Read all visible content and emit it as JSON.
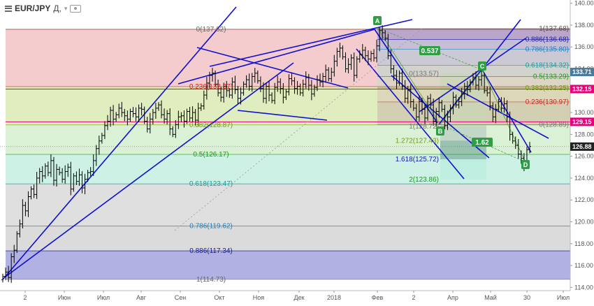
{
  "header": {
    "symbol": "EUR/JPY",
    "timeframe": "Д,"
  },
  "chart_data": {
    "type": "candlestick",
    "x_ticks": [
      "2",
      "Июн",
      "Июл",
      "Авг",
      "Сен",
      "Окт",
      "Ноя",
      "Дек",
      "2018",
      "Фев",
      "2",
      "Апр",
      "Май",
      "30",
      "Июл"
    ],
    "ylim": [
      113.7,
      140.3
    ],
    "y_ticks": [
      "114.00",
      "116.00",
      "118.00",
      "120.00",
      "122.00",
      "124.00",
      "126.00",
      "128.00",
      "130.00",
      "132.00",
      "134.00",
      "136.00",
      "138.00",
      "140.00"
    ],
    "price_labels": [
      {
        "value": "133.71",
        "color": "#4a7a9b"
      },
      {
        "value": "132.15",
        "color": "#e6007e"
      },
      {
        "value": "129.15",
        "color": "#e6007e"
      },
      {
        "value": "126.88",
        "color": "#222222"
      }
    ],
    "fib_retracement": {
      "label_color": "#5a5a5a",
      "levels": [
        {
          "label": "0(137.62)",
          "value": 137.62,
          "color": "#8a3030"
        },
        {
          "label": "0.236(132.37)",
          "value": 132.37,
          "color": "#cc2222"
        },
        {
          "label": "0.382(128.87)",
          "value": 128.87,
          "color": "#7a9a10"
        },
        {
          "label": "0.5(126.17)",
          "value": 126.17,
          "color": "#10a010"
        },
        {
          "label": "0.618(123.47)",
          "value": 123.47,
          "color": "#10a0a0"
        },
        {
          "label": "0.786(119.62)",
          "value": 119.62,
          "color": "#2080c0"
        },
        {
          "label": "0.886(117.34)",
          "value": 117.34,
          "color": "#1818a0"
        },
        {
          "label": "1(114.73)",
          "value": 114.73,
          "color": "#777777"
        }
      ]
    },
    "fib_retracement_2": {
      "levels": [
        {
          "label": "1(137.68)",
          "value": 137.68,
          "color": "#555555"
        },
        {
          "label": "0.886(136.68)",
          "value": 136.68,
          "color": "#1818a0"
        },
        {
          "label": "0.786(135.80)",
          "value": 135.8,
          "color": "#2080c0"
        },
        {
          "label": "0.618(134.32)",
          "value": 134.32,
          "color": "#10a0a0"
        },
        {
          "label": "0.5(133.29)",
          "value": 133.29,
          "color": "#10a010"
        },
        {
          "label": "0.382(132.25)",
          "value": 132.25,
          "color": "#7a9a10"
        },
        {
          "label": "0.236(130.97)",
          "value": 130.97,
          "color": "#cc2222"
        },
        {
          "label": "0(128.89)",
          "value": 128.89,
          "color": "#777777"
        }
      ]
    },
    "fib_extension": {
      "levels": [
        {
          "label": "0(133.57)",
          "value": 133.57,
          "color": "#777777"
        },
        {
          "label": "1(128.72)",
          "value": 128.72,
          "color": "#777777"
        },
        {
          "label": "1.272(127.43)",
          "value": 127.43,
          "color": "#7a9a10"
        },
        {
          "label": "1.618(125.72)",
          "value": 125.72,
          "color": "#1818a0"
        },
        {
          "label": "2(123.86)",
          "value": 123.86,
          "color": "#10a010"
        }
      ]
    },
    "pattern_points": [
      {
        "label": "A",
        "value": 137.7
      },
      {
        "label": "B",
        "value": 128.7
      },
      {
        "label": "C",
        "value": 133.5
      },
      {
        "label": "D",
        "value": 125.7
      }
    ],
    "ratio_labels": [
      "0.537",
      "1.62"
    ],
    "candle_color": "#000000",
    "trendline_color": "#1010d0",
    "series_close": [
      115.0,
      115.4,
      114.9,
      116.8,
      117.4,
      118.9,
      119.8,
      121.5,
      121.0,
      122.3,
      123.0,
      122.5,
      124.0,
      124.6,
      124.2,
      125.1,
      124.5,
      125.6,
      123.8,
      124.8,
      124.5,
      123.9,
      124.6,
      125.0,
      123.0,
      124.2,
      123.7,
      124.3,
      123.1,
      123.9,
      124.5,
      124.6,
      125.6,
      126.7,
      127.4,
      127.9,
      128.8,
      129.2,
      130.2,
      129.4,
      129.8,
      130.4,
      130.0,
      129.7,
      129.4,
      130.1,
      129.9,
      129.6,
      130.4,
      130.3,
      129.2,
      128.5,
      129.4,
      130.0,
      130.4,
      130.7,
      129.8,
      129.4,
      129.9,
      128.5,
      128.0,
      128.9,
      129.6,
      129.7,
      129.2,
      130.1,
      129.5,
      130.0,
      129.3,
      130.4,
      130.6,
      131.6,
      132.7,
      133.4,
      133.6,
      132.6,
      131.8,
      131.4,
      132.4,
      132.0,
      131.6,
      132.8,
      132.1,
      131.3,
      131.8,
      132.6,
      133.0,
      132.4,
      133.3,
      133.6,
      132.9,
      132.2,
      131.3,
      132.4,
      131.6,
      131.1,
      132.3,
      132.8,
      132.2,
      131.4,
      131.9,
      133.1,
      132.9,
      132.2,
      132.4,
      131.8,
      132.6,
      133.2,
      132.5,
      131.7,
      132.3,
      133.0,
      132.8,
      133.3,
      133.9,
      133.1,
      133.7,
      134.7,
      135.6,
      135.9,
      135.1,
      134.0,
      134.4,
      135.0,
      133.4,
      134.9,
      135.3,
      135.7,
      135.2,
      134.9,
      135.4,
      135.0,
      136.1,
      137.5,
      137.3,
      136.8,
      135.2,
      134.0,
      133.4,
      132.7,
      133.6,
      132.4,
      131.3,
      132.1,
      131.0,
      130.4,
      129.6,
      131.0,
      130.3,
      129.5,
      131.3,
      130.7,
      129.2,
      130.1,
      130.9,
      130.3,
      128.8,
      129.6,
      130.4,
      131.4,
      130.7,
      131.0,
      131.7,
      132.4,
      132.1,
      132.8,
      133.2,
      132.5,
      133.0,
      133.4,
      132.0,
      131.8,
      130.6,
      129.6,
      130.3,
      131.0,
      130.4,
      130.8,
      129.6,
      128.0,
      127.4,
      127.0,
      126.2,
      125.8,
      125.2,
      126.6,
      126.9
    ]
  }
}
